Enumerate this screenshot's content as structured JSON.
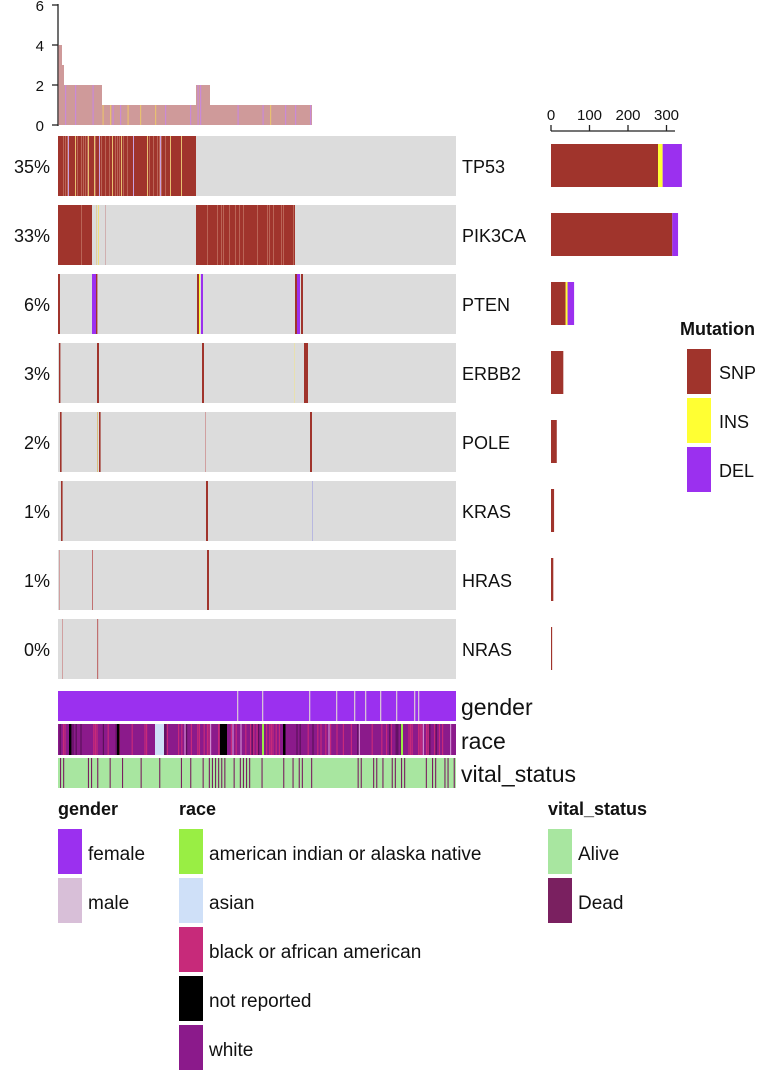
{
  "chart_data": {
    "type": "heatmap",
    "top_bar_axis": {
      "ticks": [
        "0",
        "2",
        "4",
        "6"
      ],
      "range": [
        0,
        6
      ]
    },
    "right_bar_axis": {
      "ticks": [
        "0",
        "100",
        "200",
        "300"
      ],
      "range": [
        0,
        350
      ]
    },
    "genes": [
      {
        "name": "TP53",
        "percent": "35%",
        "counts": {
          "SNP": 278,
          "INS": 12,
          "DEL": 50
        }
      },
      {
        "name": "PIK3CA",
        "percent": "33%",
        "counts": {
          "SNP": 315,
          "INS": 0,
          "DEL": 15
        }
      },
      {
        "name": "PTEN",
        "percent": "6%",
        "counts": {
          "SNP": 38,
          "INS": 5,
          "DEL": 17
        }
      },
      {
        "name": "ERBB2",
        "percent": "3%",
        "counts": {
          "SNP": 32,
          "INS": 0,
          "DEL": 0
        }
      },
      {
        "name": "POLE",
        "percent": "2%",
        "counts": {
          "SNP": 15,
          "INS": 0,
          "DEL": 0
        }
      },
      {
        "name": "KRAS",
        "percent": "1%",
        "counts": {
          "SNP": 8,
          "INS": 0,
          "DEL": 0
        }
      },
      {
        "name": "HRAS",
        "percent": "1%",
        "counts": {
          "SNP": 6,
          "INS": 0,
          "DEL": 0
        }
      },
      {
        "name": "NRAS",
        "percent": "0%",
        "counts": {
          "SNP": 3,
          "INS": 0,
          "DEL": 0
        }
      }
    ],
    "annotation_tracks": [
      "gender",
      "race",
      "vital_status"
    ],
    "mutation_legend": {
      "title": "Mutation",
      "items": [
        {
          "label": "SNP",
          "color": "#a0342c"
        },
        {
          "label": "INS",
          "color": "#ffff33"
        },
        {
          "label": "DEL",
          "color": "#9b30ef"
        }
      ]
    },
    "legends": [
      {
        "title": "gender",
        "items": [
          {
            "label": "female",
            "color": "#9b30ef"
          },
          {
            "label": "male",
            "color": "#d8bfd8"
          }
        ]
      },
      {
        "title": "race",
        "items": [
          {
            "label": "american indian or alaska native",
            "color": "#99ee44"
          },
          {
            "label": "asian",
            "color": "#cfe0f8"
          },
          {
            "label": "black or african american",
            "color": "#c72a7a"
          },
          {
            "label": "not reported",
            "color": "#000000"
          },
          {
            "label": "white",
            "color": "#8b1a8b"
          }
        ]
      },
      {
        "title": "vital_status",
        "items": [
          {
            "label": "Alive",
            "color": "#a8e6a0"
          },
          {
            "label": "Dead",
            "color": "#7a2060"
          }
        ]
      }
    ],
    "colors": {
      "background_cell": "#dcdcdc",
      "top_bar": "#cf9a9a"
    }
  }
}
